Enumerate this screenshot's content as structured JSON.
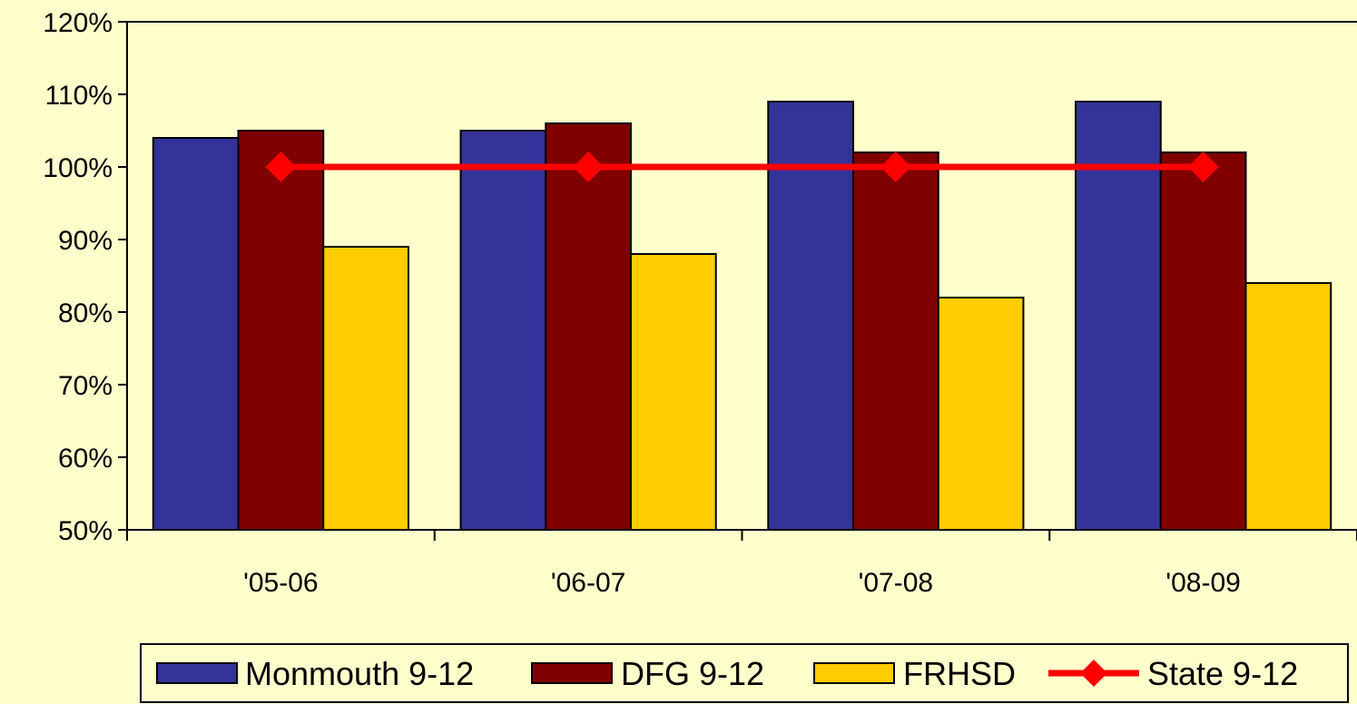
{
  "chart_data": {
    "type": "bar",
    "categories": [
      "'05-06",
      "'06-07",
      "'07-08",
      "'08-09"
    ],
    "series": [
      {
        "name": "Monmouth 9-12",
        "kind": "bar",
        "color": "#333399",
        "values": [
          104,
          105,
          109,
          109
        ]
      },
      {
        "name": "DFG 9-12",
        "kind": "bar",
        "color": "#800000",
        "values": [
          105,
          106,
          102,
          102
        ]
      },
      {
        "name": "FRHSD",
        "kind": "bar",
        "color": "#FFCC00",
        "values": [
          89,
          88,
          82,
          84
        ]
      },
      {
        "name": "State 9-12",
        "kind": "line",
        "color": "#FF0000",
        "values": [
          100,
          100,
          100,
          100
        ]
      }
    ],
    "yticks": [
      "50%",
      "60%",
      "70%",
      "80%",
      "90%",
      "100%",
      "110%",
      "120%"
    ],
    "ylim": [
      50,
      120
    ],
    "title": "",
    "xlabel": "",
    "ylabel": "",
    "legend_position": "bottom",
    "background_color": "#FFFFCC",
    "grid": false
  }
}
